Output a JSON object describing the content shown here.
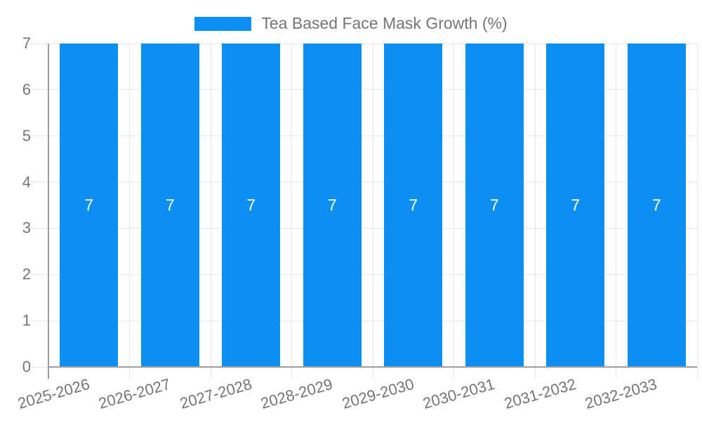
{
  "chart": {
    "legend_label": "Tea Based Face Mask Growth (%)"
  },
  "chart_data": {
    "type": "bar",
    "title": "Tea Based Face Mask Growth (%)",
    "categories": [
      "2025-2026",
      "2026-2027",
      "2027-2028",
      "2028-2029",
      "2029-2030",
      "2030-2031",
      "2031-2032",
      "2032-2033"
    ],
    "series": [
      {
        "name": "Tea Based Face Mask Growth (%)",
        "values": [
          7,
          7,
          7,
          7,
          7,
          7,
          7,
          7
        ]
      }
    ],
    "bar_value_labels": [
      "7",
      "7",
      "7",
      "7",
      "7",
      "7",
      "7",
      "7"
    ],
    "xlabel": "",
    "ylabel": "",
    "ylim": [
      0,
      7
    ],
    "yticks": [
      0,
      1,
      2,
      3,
      4,
      5,
      6,
      7
    ],
    "grid": true,
    "legend_position": "top-center",
    "colors": {
      "bar": "#0b8ff2",
      "grid": "#e6e6e6",
      "axis": "#9e9e9e",
      "label_text": "#757575",
      "bar_value_text": "#ffffff",
      "background": "#ffffff"
    }
  }
}
